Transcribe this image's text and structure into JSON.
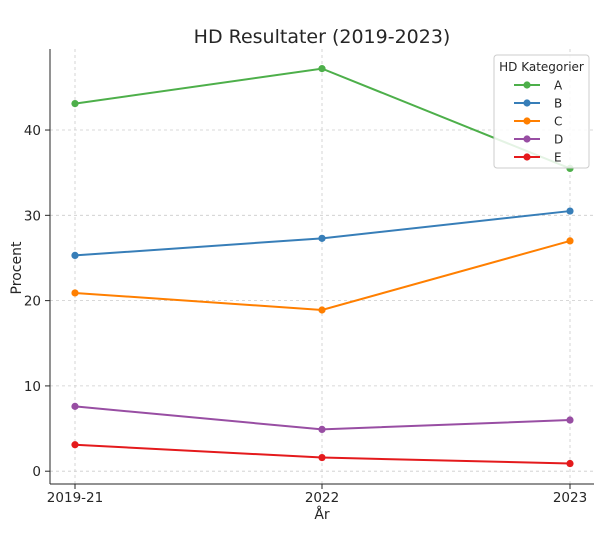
{
  "chart_data": {
    "type": "line",
    "title": "HD Resultater (2019-2023)",
    "xlabel": "År",
    "ylabel": "Procent",
    "categories": [
      "2019-21",
      "2022",
      "2023"
    ],
    "ylim": [
      -1.5,
      49.5
    ],
    "yticks": [
      0,
      10,
      20,
      30,
      40
    ],
    "grid": true,
    "legend": {
      "title": "HD Kategorier",
      "placement": "top-right"
    },
    "series": [
      {
        "name": "A",
        "color": "#4daf4a",
        "values": [
          43.1,
          47.2,
          35.5
        ]
      },
      {
        "name": "B",
        "color": "#377eb8",
        "values": [
          25.3,
          27.3,
          30.5
        ]
      },
      {
        "name": "C",
        "color": "#ff7f00",
        "values": [
          20.9,
          18.9,
          27.0
        ]
      },
      {
        "name": "D",
        "color": "#984ea3",
        "values": [
          7.6,
          4.9,
          6.0
        ]
      },
      {
        "name": "E",
        "color": "#e41a1c",
        "values": [
          3.1,
          1.6,
          0.9
        ]
      }
    ]
  }
}
